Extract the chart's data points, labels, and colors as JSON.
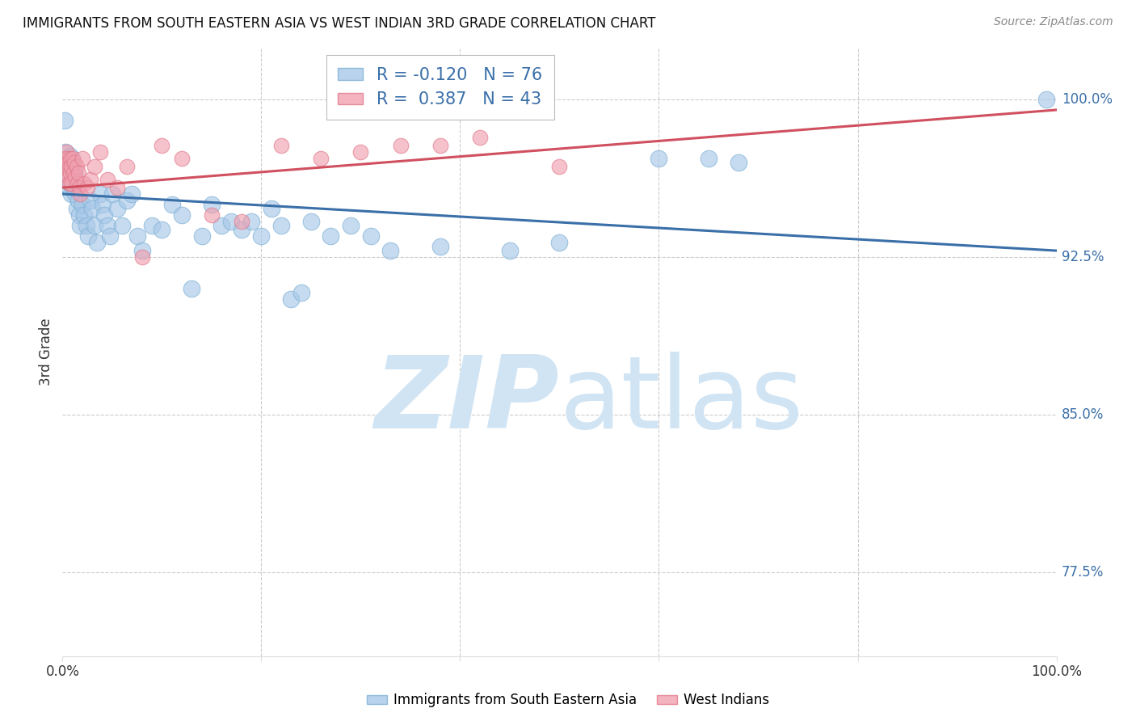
{
  "title": "IMMIGRANTS FROM SOUTH EASTERN ASIA VS WEST INDIAN 3RD GRADE CORRELATION CHART",
  "source": "Source: ZipAtlas.com",
  "ylabel": "3rd Grade",
  "ytick_labels": [
    "77.5%",
    "85.0%",
    "92.5%",
    "100.0%"
  ],
  "ytick_values": [
    0.775,
    0.85,
    0.925,
    1.0
  ],
  "ymin": 0.735,
  "ymax": 1.025,
  "xmin": 0.0,
  "xmax": 1.0,
  "blue_label": "Immigrants from South Eastern Asia",
  "pink_label": "West Indians",
  "blue_R": -0.12,
  "blue_N": 76,
  "pink_R": 0.387,
  "pink_N": 43,
  "blue_color": "#a8c8e8",
  "pink_color": "#f0a0b0",
  "blue_edge_color": "#7bafd4",
  "pink_edge_color": "#e07888",
  "blue_line_color": "#3a6fa8",
  "pink_line_color": "#d05060",
  "watermark_color": "#d0e4f4",
  "grid_color": "#cccccc",
  "text_color": "#333333",
  "blue_x": [
    0.002,
    0.003,
    0.003,
    0.004,
    0.004,
    0.005,
    0.005,
    0.005,
    0.006,
    0.006,
    0.007,
    0.007,
    0.007,
    0.008,
    0.008,
    0.009,
    0.009,
    0.01,
    0.01,
    0.01,
    0.011,
    0.012,
    0.013,
    0.014,
    0.015,
    0.016,
    0.017,
    0.018,
    0.02,
    0.022,
    0.024,
    0.026,
    0.028,
    0.03,
    0.032,
    0.035,
    0.038,
    0.04,
    0.042,
    0.045,
    0.048,
    0.05,
    0.055,
    0.06,
    0.065,
    0.07,
    0.075,
    0.08,
    0.09,
    0.1,
    0.11,
    0.12,
    0.13,
    0.14,
    0.15,
    0.16,
    0.17,
    0.18,
    0.19,
    0.2,
    0.21,
    0.22,
    0.23,
    0.24,
    0.25,
    0.27,
    0.29,
    0.31,
    0.33,
    0.38,
    0.45,
    0.5,
    0.6,
    0.65,
    0.68,
    0.99
  ],
  "blue_y": [
    0.99,
    0.975,
    0.97,
    0.968,
    0.965,
    0.972,
    0.967,
    0.962,
    0.97,
    0.965,
    0.968,
    0.963,
    0.958,
    0.973,
    0.96,
    0.968,
    0.955,
    0.97,
    0.965,
    0.96,
    0.958,
    0.965,
    0.955,
    0.948,
    0.958,
    0.952,
    0.945,
    0.94,
    0.95,
    0.945,
    0.94,
    0.935,
    0.952,
    0.948,
    0.94,
    0.932,
    0.955,
    0.95,
    0.945,
    0.94,
    0.935,
    0.955,
    0.948,
    0.94,
    0.952,
    0.955,
    0.935,
    0.928,
    0.94,
    0.938,
    0.95,
    0.945,
    0.91,
    0.935,
    0.95,
    0.94,
    0.942,
    0.938,
    0.942,
    0.935,
    0.948,
    0.94,
    0.905,
    0.908,
    0.942,
    0.935,
    0.94,
    0.935,
    0.928,
    0.93,
    0.928,
    0.932,
    0.972,
    0.972,
    0.97,
    1.0
  ],
  "pink_x": [
    0.002,
    0.003,
    0.004,
    0.005,
    0.005,
    0.006,
    0.006,
    0.007,
    0.007,
    0.008,
    0.008,
    0.009,
    0.009,
    0.01,
    0.011,
    0.012,
    0.013,
    0.014,
    0.015,
    0.016,
    0.017,
    0.018,
    0.02,
    0.022,
    0.025,
    0.028,
    0.032,
    0.038,
    0.045,
    0.055,
    0.065,
    0.08,
    0.1,
    0.12,
    0.15,
    0.18,
    0.22,
    0.26,
    0.3,
    0.34,
    0.38,
    0.42,
    0.5
  ],
  "pink_y": [
    0.972,
    0.968,
    0.975,
    0.972,
    0.965,
    0.97,
    0.963,
    0.968,
    0.96,
    0.972,
    0.965,
    0.968,
    0.96,
    0.972,
    0.965,
    0.97,
    0.963,
    0.968,
    0.96,
    0.965,
    0.958,
    0.955,
    0.972,
    0.96,
    0.958,
    0.962,
    0.968,
    0.975,
    0.962,
    0.958,
    0.968,
    0.925,
    0.978,
    0.972,
    0.945,
    0.942,
    0.978,
    0.972,
    0.975,
    0.978,
    0.978,
    0.982,
    0.968
  ]
}
